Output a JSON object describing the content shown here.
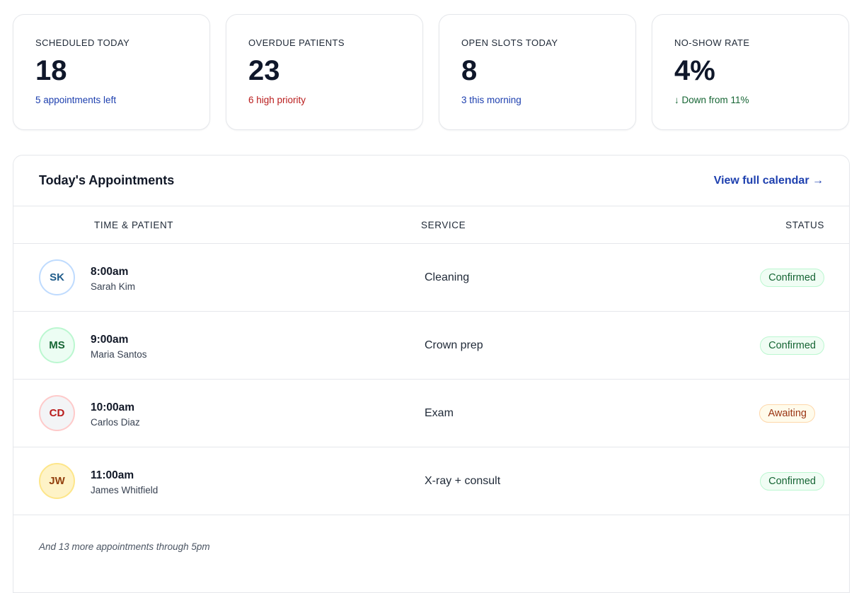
{
  "stats": [
    {
      "label": "SCHEDULED TODAY",
      "value": "18",
      "sub": "5 appointments left",
      "sub_color": "#1e40af"
    },
    {
      "label": "OVERDUE PATIENTS",
      "value": "23",
      "sub": "6 high priority",
      "sub_color": "#b91c1c"
    },
    {
      "label": "OPEN SLOTS TODAY",
      "value": "8",
      "sub": "3 this morning",
      "sub_color": "#1e40af"
    },
    {
      "label": "NO-SHOW RATE",
      "value": "4%",
      "sub": "↓ Down from 11%",
      "sub_color": "#166534"
    }
  ],
  "appointments": {
    "title": "Today's Appointments",
    "calendar_link": "View full calendar →",
    "columns": {
      "patient": "TIME & PATIENT",
      "service": "SERVICE",
      "status": "STATUS"
    },
    "rows": [
      {
        "initials": "SK",
        "time": "8:00am",
        "name": "Sarah Kim",
        "service": "Cleaning",
        "status": "Confirmed"
      },
      {
        "initials": "MS",
        "time": "9:00am",
        "name": "Maria Santos",
        "service": "Crown prep",
        "status": "Confirmed"
      },
      {
        "initials": "CD",
        "time": "10:00am",
        "name": "Carlos Diaz",
        "service": "Exam",
        "status": "Awaiting"
      },
      {
        "initials": "JW",
        "time": "11:00am",
        "name": "James Whitfield",
        "service": "X-ray + consult",
        "status": "Confirmed"
      }
    ],
    "footer": "And 13 more appointments through 5pm"
  },
  "colors": {
    "accent": "#1e40af",
    "danger": "#b91c1c",
    "success": "#166534",
    "warning": "#9a3412"
  }
}
